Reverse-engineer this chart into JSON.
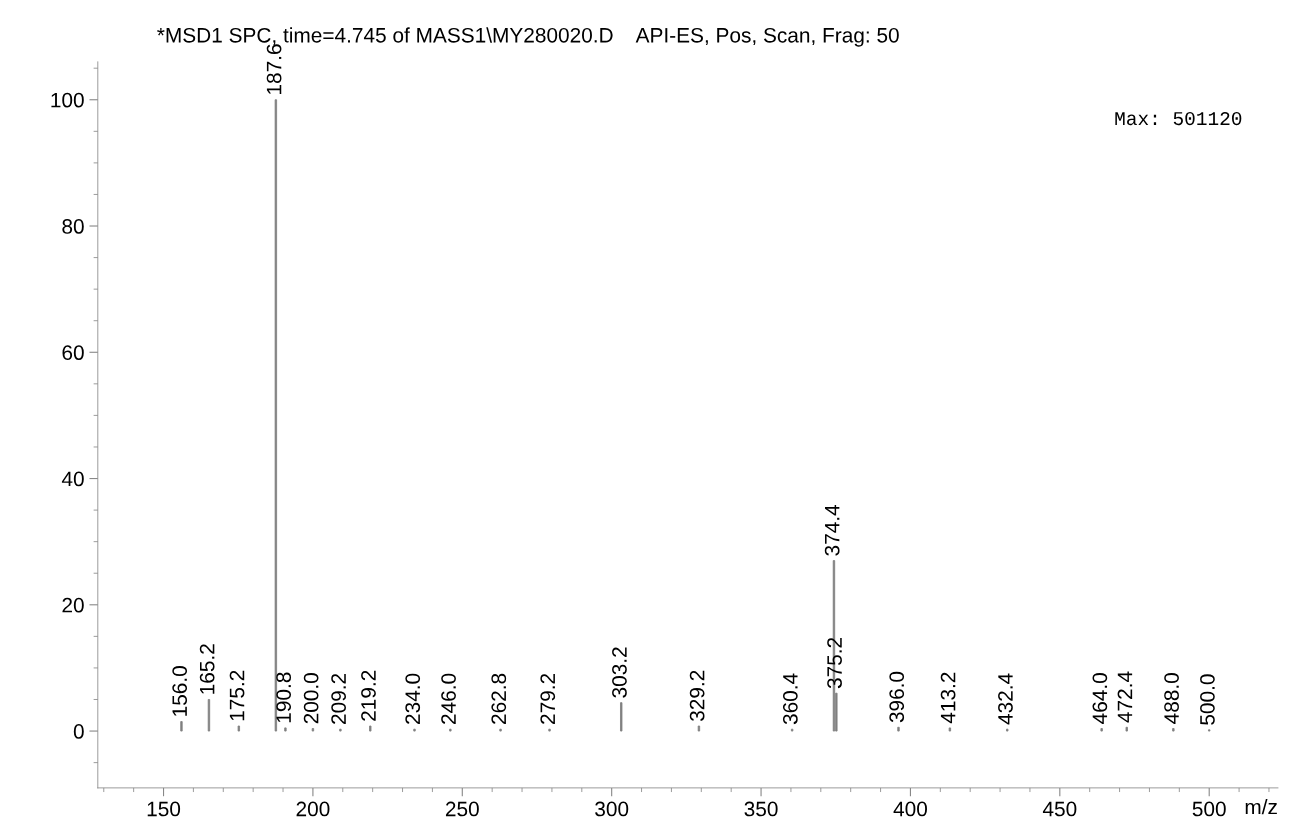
{
  "chart_data": {
    "type": "bar",
    "title": "*MSD1 SPC, time=4.745 of MASS1\\MY280020.D    API-ES, Pos, Scan, Frag: 50",
    "xlabel": "m/z",
    "x": [
      156.0,
      165.2,
      175.2,
      187.6,
      190.8,
      200.0,
      209.2,
      219.2,
      234.0,
      246.0,
      262.8,
      279.2,
      303.2,
      329.2,
      360.4,
      374.4,
      375.2,
      396.0,
      413.2,
      432.4,
      464.0,
      472.4,
      488.0,
      500.0
    ],
    "values": [
      1.5,
      5,
      0.8,
      100,
      0.5,
      0.4,
      0.3,
      0.8,
      0.3,
      0.3,
      0.3,
      0.3,
      4.5,
      0.8,
      0.3,
      27,
      6,
      0.6,
      0.5,
      0.3,
      0.4,
      0.6,
      0.4,
      0.2
    ],
    "color": "#808080",
    "xlim": [
      128,
      523
    ],
    "ylim": [
      -9,
      106
    ],
    "xticks": [
      150,
      200,
      250,
      300,
      350,
      400,
      450,
      {
        "value": 500,
        "label": "500"
      }
    ],
    "yticks": [
      0,
      20,
      40,
      60,
      80,
      100
    ],
    "grid": false,
    "annotations": [
      {
        "text": "156.0",
        "x": 156.0,
        "y": 1.5
      },
      {
        "text": "165.2",
        "x": 165.2,
        "y": 5
      },
      {
        "text": "175.2",
        "x": 175.2,
        "y": 0.8
      },
      {
        "text": "187.6",
        "x": 187.6,
        "y": 100
      },
      {
        "text": "190.8",
        "x": 190.8,
        "y": 0.5
      },
      {
        "text": "200.0",
        "x": 200.0,
        "y": 0.4
      },
      {
        "text": "209.2",
        "x": 209.2,
        "y": 0.3
      },
      {
        "text": "219.2",
        "x": 219.2,
        "y": 0.8
      },
      {
        "text": "234.0",
        "x": 234.0,
        "y": 0.3
      },
      {
        "text": "246.0",
        "x": 246.0,
        "y": 0.3
      },
      {
        "text": "262.8",
        "x": 262.8,
        "y": 0.3
      },
      {
        "text": "279.2",
        "x": 279.2,
        "y": 0.3
      },
      {
        "text": "303.2",
        "x": 303.2,
        "y": 4.5
      },
      {
        "text": "329.2",
        "x": 329.2,
        "y": 0.8
      },
      {
        "text": "360.4",
        "x": 360.4,
        "y": 0.3
      },
      {
        "text": "374.4",
        "x": 374.4,
        "y": 27
      },
      {
        "text": "375.2",
        "x": 375.2,
        "y": 6
      },
      {
        "text": "396.0",
        "x": 396.0,
        "y": 0.6
      },
      {
        "text": "413.2",
        "x": 413.2,
        "y": 0.5
      },
      {
        "text": "432.4",
        "x": 432.4,
        "y": 0.3
      },
      {
        "text": "464.0",
        "x": 464.0,
        "y": 0.4
      },
      {
        "text": "472.4",
        "x": 472.4,
        "y": 0.6
      },
      {
        "text": "488.0",
        "x": 488.0,
        "y": 0.4
      },
      {
        "text": "500.0",
        "x": 500.0,
        "y": 0.2
      },
      "Max: 501120"
    ]
  }
}
